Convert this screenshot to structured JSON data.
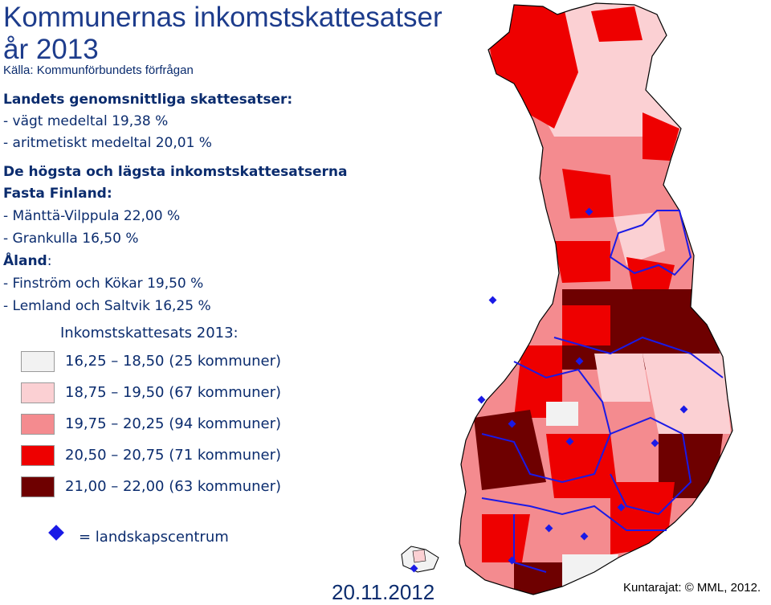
{
  "header": {
    "title_line1": "Kommunernas inkomstskattesatser",
    "title_line2": "år 2013",
    "source": "Källa: Kommunförbundets förfrågan"
  },
  "averages": {
    "heading": "Landets genomsnittliga skattesatser:",
    "weighted": "- vägt medeltal 19,38 %",
    "arithmetic": "- aritmetiskt medeltal 20,01 %"
  },
  "extremes": {
    "heading": "De högsta och lägsta inkomstskattesatserna",
    "mainland_heading": "Fasta Finland:",
    "mainland_high": "- Mänttä-Vilppula 22,00 %",
    "mainland_low": "- Grankulla 16,50 %",
    "aland_heading": "Åland",
    "aland_colon": ":",
    "aland_high": "- Finström och Kökar 19,50 %",
    "aland_low": "- Lemland och Saltvik 16,25 %"
  },
  "legend": {
    "title": "Inkomstskattesats 2013:",
    "classes": [
      {
        "label": "16,25 – 18,50 (25 kommuner)",
        "color": "#f2f2f2"
      },
      {
        "label": "18,75 – 19,50 (67 kommuner)",
        "color": "#fbd0d3"
      },
      {
        "label": "19,75 – 20,25 (94 kommuner)",
        "color": "#f48b8f"
      },
      {
        "label": "20,50 – 20,75 (71 kommuner)",
        "color": "#ee0000"
      },
      {
        "label": "21,00 – 22,00 (63 kommuner)",
        "color": "#6e0000"
      }
    ],
    "center_symbol": "regional-center-diamond-icon",
    "center_label": "= landskapscentrum"
  },
  "footer": {
    "date": "20.11.2012",
    "credit": "Kuntarajat: © MML, 2012."
  }
}
